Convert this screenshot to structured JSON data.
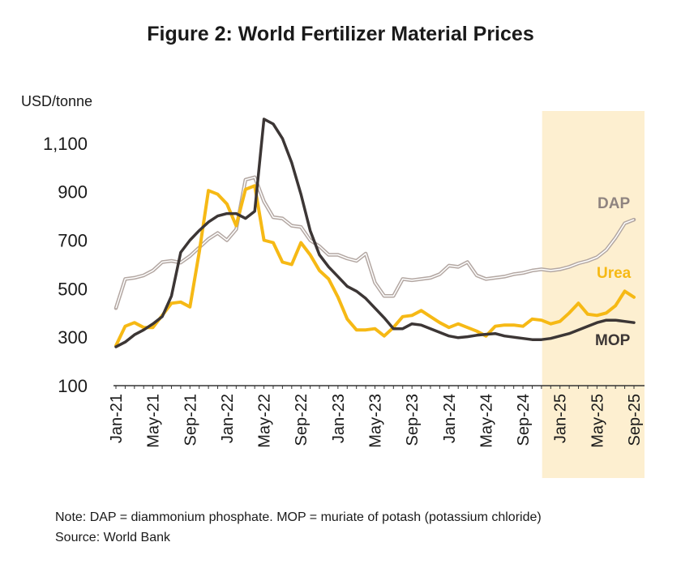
{
  "title": "Figure 2: World Fertilizer Material Prices",
  "unit_label": "USD/tonne",
  "note": "Note: DAP = diammonium phosphate. MOP = muriate of potash (potassium chloride)",
  "source": "Source: World Bank",
  "colors": {
    "dap": "#b3a7a2",
    "urea": "#f6b915",
    "mop": "#3c3635",
    "highlight": "#fdefd0",
    "axis": "#333333"
  },
  "chart_data": {
    "type": "line",
    "title": "Figure 2: World Fertilizer Material Prices",
    "ylabel": "USD/tonne",
    "xlabel": "",
    "ylim": [
      100,
      1200
    ],
    "yticks": [
      100,
      300,
      500,
      700,
      900,
      1100
    ],
    "ytick_labels": [
      "100",
      "300",
      "500",
      "700",
      "900",
      "1,100"
    ],
    "xtick_labels": [
      "Jan-21",
      "May-21",
      "Sep-21",
      "Jan-22",
      "May-22",
      "Sep-22",
      "Jan-23",
      "May-23",
      "Sep-23",
      "Jan-24",
      "May-24",
      "Sep-24",
      "Jan-25",
      "May-25",
      "Sep-25"
    ],
    "xtick_month_index": [
      0,
      4,
      8,
      12,
      16,
      20,
      24,
      28,
      32,
      36,
      40,
      44,
      48,
      52,
      56
    ],
    "highlight_range": {
      "from": "Jan-25",
      "to": "Sep-25"
    },
    "months": [
      "Jan-21",
      "Feb-21",
      "Mar-21",
      "Apr-21",
      "May-21",
      "Jun-21",
      "Jul-21",
      "Aug-21",
      "Sep-21",
      "Oct-21",
      "Nov-21",
      "Dec-21",
      "Jan-22",
      "Feb-22",
      "Mar-22",
      "Apr-22",
      "May-22",
      "Jun-22",
      "Jul-22",
      "Aug-22",
      "Sep-22",
      "Oct-22",
      "Nov-22",
      "Dec-22",
      "Jan-23",
      "Feb-23",
      "Mar-23",
      "Apr-23",
      "May-23",
      "Jun-23",
      "Jul-23",
      "Aug-23",
      "Sep-23",
      "Oct-23",
      "Nov-23",
      "Dec-23",
      "Jan-24",
      "Feb-24",
      "Mar-24",
      "Apr-24",
      "May-24",
      "Jun-24",
      "Jul-24",
      "Aug-24",
      "Sep-24",
      "Oct-24",
      "Nov-24",
      "Dec-24",
      "Jan-25",
      "Feb-25",
      "Mar-25",
      "Apr-25",
      "May-25",
      "Jun-25",
      "Jul-25",
      "Aug-25",
      "Sep-25"
    ],
    "series": [
      {
        "name": "DAP",
        "values": [
          420,
          540,
          545,
          555,
          575,
          610,
          615,
          608,
          635,
          670,
          705,
          730,
          700,
          745,
          950,
          960,
          860,
          795,
          790,
          760,
          755,
          700,
          675,
          640,
          640,
          625,
          615,
          645,
          525,
          470,
          470,
          540,
          535,
          540,
          545,
          560,
          595,
          590,
          610,
          555,
          540,
          545,
          550,
          560,
          565,
          575,
          580,
          575,
          580,
          590,
          605,
          615,
          630,
          660,
          710,
          770,
          785
        ]
      },
      {
        "name": "Urea",
        "values": [
          265,
          345,
          360,
          340,
          340,
          390,
          440,
          445,
          425,
          650,
          905,
          890,
          850,
          760,
          910,
          925,
          700,
          690,
          610,
          600,
          690,
          640,
          575,
          540,
          465,
          375,
          330,
          330,
          335,
          305,
          340,
          385,
          390,
          410,
          385,
          360,
          340,
          355,
          340,
          325,
          305,
          345,
          350,
          350,
          345,
          375,
          370,
          355,
          365,
          400,
          440,
          395,
          390,
          400,
          430,
          490,
          465
        ]
      },
      {
        "name": "MOP",
        "values": [
          260,
          280,
          310,
          330,
          355,
          385,
          470,
          650,
          700,
          740,
          775,
          800,
          810,
          810,
          790,
          820,
          1200,
          1180,
          1120,
          1020,
          890,
          740,
          640,
          590,
          550,
          510,
          490,
          460,
          420,
          380,
          335,
          335,
          355,
          350,
          335,
          320,
          305,
          298,
          302,
          308,
          312,
          315,
          305,
          300,
          295,
          290,
          290,
          295,
          305,
          315,
          330,
          345,
          360,
          370,
          370,
          365,
          360
        ]
      }
    ]
  }
}
